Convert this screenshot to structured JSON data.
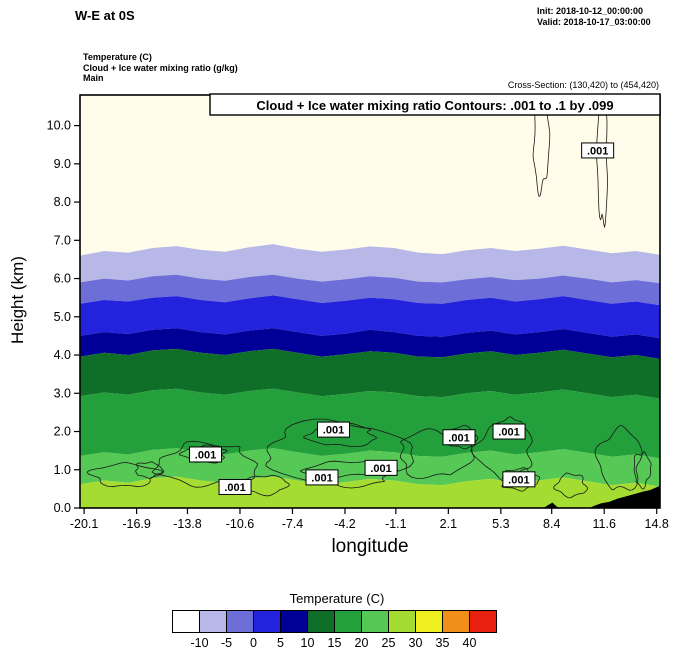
{
  "header": {
    "title": "W-E at 0S",
    "init_label": "Init: 2018-10-12_00:00:00",
    "valid_label": "Valid: 2018-10-17_03:00:00",
    "field_lines": [
      "Temperature  (C)",
      "Cloud + Ice water mixing ratio  (g/kg)",
      "Main"
    ],
    "cross_section": "Cross-Section: (130,420) to (454,420)"
  },
  "chart_data": {
    "type": "area",
    "subtype": "vertical_cross_section_filled_temperature_with_cloud_contours",
    "title": "Cloud + Ice water mixing ratio Contours: .001 to .1 by .099",
    "xlabel": "longitude",
    "ylabel": "Height (km)",
    "xlim": [
      -20.35,
      15.0
    ],
    "ylim": [
      0,
      10.8
    ],
    "x_tick_values": [
      -20.1,
      -16.9,
      -13.8,
      -10.6,
      -7.4,
      -4.2,
      -1.1,
      2.1,
      5.3,
      8.4,
      11.6,
      14.8
    ],
    "y_tick_values": [
      0,
      1,
      2,
      3,
      4,
      5,
      6,
      7,
      8,
      9,
      10
    ],
    "grid": false,
    "background_color": "#fffdea",
    "background_band": {
      "temp_c": "below -10",
      "color": "#fffdea"
    },
    "temperature_bands": [
      {
        "temp_c": "-10 to -5",
        "color": "#b8b8e8",
        "top_km": [
          6.6,
          6.72,
          6.68,
          6.8,
          6.85,
          6.75,
          6.7,
          6.82,
          6.9,
          6.78,
          6.7,
          6.76,
          6.84,
          6.8,
          6.68,
          6.64,
          6.74,
          6.8,
          6.72,
          6.78,
          6.86,
          6.76,
          6.66,
          6.72,
          6.62
        ]
      },
      {
        "temp_c": "-5 to 0",
        "color": "#6e6ed8",
        "top_km": [
          5.9,
          6.0,
          5.95,
          6.06,
          6.1,
          6.0,
          5.94,
          6.04,
          6.1,
          6.0,
          5.92,
          5.98,
          6.06,
          6.02,
          5.92,
          5.9,
          5.98,
          6.04,
          5.96,
          6.0,
          6.08,
          6.0,
          5.9,
          5.96,
          5.88
        ]
      },
      {
        "temp_c": "0 to 5",
        "color": "#2323dd",
        "top_km": [
          5.34,
          5.44,
          5.4,
          5.5,
          5.54,
          5.44,
          5.38,
          5.48,
          5.56,
          5.46,
          5.36,
          5.42,
          5.5,
          5.46,
          5.36,
          5.34,
          5.44,
          5.5,
          5.4,
          5.46,
          5.54,
          5.44,
          5.34,
          5.4,
          5.3
        ]
      },
      {
        "temp_c": "5 to 10",
        "color": "#000096",
        "top_km": [
          4.5,
          4.6,
          4.55,
          4.66,
          4.7,
          4.6,
          4.54,
          4.64,
          4.7,
          4.6,
          4.5,
          4.56,
          4.66,
          4.6,
          4.5,
          4.48,
          4.58,
          4.64,
          4.54,
          4.6,
          4.68,
          4.58,
          4.48,
          4.54,
          4.44
        ]
      },
      {
        "temp_c": "10 to 15",
        "color": "#0f6e28",
        "top_km": [
          3.96,
          4.06,
          4.0,
          4.12,
          4.16,
          4.06,
          4.0,
          4.1,
          4.16,
          4.06,
          3.96,
          4.02,
          4.1,
          4.06,
          3.96,
          3.94,
          4.04,
          4.1,
          4.0,
          4.06,
          4.14,
          4.04,
          3.94,
          4.0,
          3.9
        ]
      },
      {
        "temp_c": "15 to 20",
        "color": "#23a03c",
        "top_km": [
          2.92,
          3.02,
          2.96,
          3.08,
          3.12,
          3.02,
          2.96,
          3.06,
          3.12,
          3.02,
          2.92,
          2.98,
          3.06,
          3.02,
          2.92,
          2.9,
          3.0,
          3.06,
          2.96,
          3.02,
          3.1,
          3.0,
          2.9,
          2.96,
          2.86
        ]
      },
      {
        "temp_c": "20 to 25",
        "color": "#55c855",
        "top_km": [
          1.36,
          1.46,
          1.4,
          1.52,
          1.56,
          1.46,
          1.4,
          1.5,
          1.56,
          1.46,
          1.36,
          1.42,
          1.5,
          1.46,
          1.36,
          1.34,
          1.44,
          1.5,
          1.4,
          1.46,
          1.54,
          1.44,
          1.34,
          1.4,
          1.3
        ]
      },
      {
        "temp_c": "25 to 30",
        "color": "#a5dc32",
        "top_km": [
          0.62,
          0.72,
          0.66,
          0.78,
          0.82,
          0.72,
          0.66,
          0.76,
          0.82,
          0.72,
          0.62,
          0.68,
          0.76,
          0.72,
          0.62,
          0.6,
          0.7,
          0.76,
          0.66,
          0.72,
          0.8,
          0.7,
          0.6,
          0.66,
          0.56
        ]
      }
    ],
    "cloud_contour_level": ".001",
    "cloud_contour_blobs": [
      [
        -17.6,
        0.85,
        2.0,
        0.3
      ],
      [
        -16.2,
        1.0,
        0.8,
        0.2
      ],
      [
        -12.6,
        1.15,
        3.0,
        0.55
      ],
      [
        -12.7,
        1.4,
        1.3,
        0.22
      ],
      [
        -9.0,
        0.6,
        1.2,
        0.25
      ],
      [
        -4.8,
        1.5,
        4.4,
        0.75
      ],
      [
        -4.3,
        1.9,
        2.0,
        0.28
      ],
      [
        -3.8,
        0.9,
        2.6,
        0.33
      ],
      [
        1.2,
        1.4,
        2.2,
        0.6
      ],
      [
        2.9,
        1.85,
        0.9,
        0.28
      ],
      [
        5.6,
        1.5,
        1.7,
        0.7
      ],
      [
        5.9,
        2.1,
        0.7,
        0.25
      ],
      [
        6.4,
        0.75,
        1.1,
        0.28
      ],
      [
        9.6,
        0.6,
        0.9,
        0.3
      ],
      [
        12.6,
        1.25,
        1.3,
        0.8
      ],
      [
        13.9,
        1.0,
        0.5,
        0.45
      ],
      [
        7.75,
        9.8,
        0.45,
        1.5
      ],
      [
        11.5,
        9.3,
        0.3,
        1.9
      ]
    ],
    "contour_labels": [
      [
        -12.7,
        1.4
      ],
      [
        -10.9,
        0.55
      ],
      [
        -4.9,
        2.05
      ],
      [
        -5.6,
        0.8
      ],
      [
        -2.0,
        1.05
      ],
      [
        2.75,
        1.85
      ],
      [
        5.8,
        2.0
      ],
      [
        6.4,
        0.75
      ],
      [
        11.2,
        9.35
      ]
    ],
    "terrain_profile": [
      [
        7.9,
        0
      ],
      [
        8.2,
        0.08
      ],
      [
        8.45,
        0.14
      ],
      [
        8.7,
        0.04
      ],
      [
        8.9,
        0
      ],
      [
        10.7,
        0
      ],
      [
        11.0,
        0.06
      ],
      [
        11.4,
        0.12
      ],
      [
        11.9,
        0.16
      ],
      [
        12.4,
        0.24
      ],
      [
        12.9,
        0.3
      ],
      [
        13.4,
        0.36
      ],
      [
        13.9,
        0.42
      ],
      [
        14.4,
        0.47
      ],
      [
        15.0,
        0.58
      ]
    ],
    "colorbar": {
      "title": "Temperature  (C)",
      "colors": [
        "#ffffff",
        "#b8b8e8",
        "#6e6ed8",
        "#2323dd",
        "#000096",
        "#0f6e28",
        "#23a03c",
        "#55c855",
        "#a5dc32",
        "#eeee20",
        "#f09018",
        "#e82010"
      ],
      "labels": [
        "-10",
        "-5",
        "0",
        "5",
        "10",
        "15",
        "20",
        "25",
        "30",
        "35",
        "40"
      ]
    }
  }
}
